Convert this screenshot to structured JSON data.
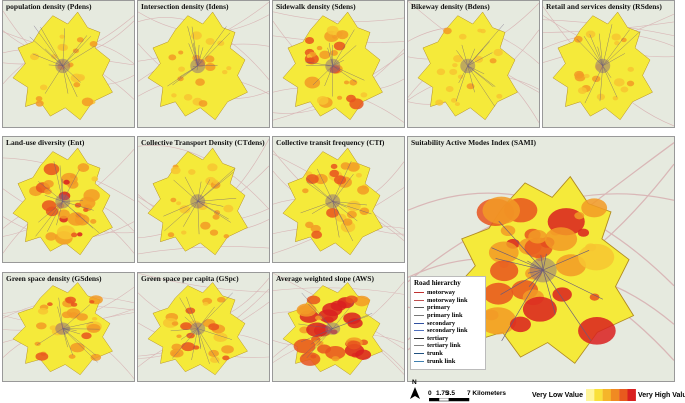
{
  "panels": [
    {
      "title": "population density (Pdens)"
    },
    {
      "title": "Intersection density (Idens)"
    },
    {
      "title": "Sidewalk density (Sdens)"
    },
    {
      "title": "Bikeway density (Bdens)"
    },
    {
      "title": "Retail and services density (RSdens)"
    },
    {
      "title": "Land-use diversity (Ent)"
    },
    {
      "title": "Collective Transport Density (CTdens)"
    },
    {
      "title": "Collective transit frequency (CTf)"
    },
    {
      "title": "Suitability Active Modes Index (SAMI)"
    },
    {
      "title": "Green space density (GSdens)"
    },
    {
      "title": "Green space per capita (GSpc)"
    },
    {
      "title": "Average weighted slope (AWS)"
    }
  ],
  "legend": {
    "title": "Road hierarchy",
    "items": [
      "motorway",
      "motorway link",
      "primary",
      "primary link",
      "secondary",
      "secondary link",
      "tertiary",
      "tertiary link",
      "trunk",
      "trunk link"
    ]
  },
  "north": "N",
  "scale": [
    "0",
    "1.75",
    "3.5",
    "7 Kilometers"
  ],
  "ramp": {
    "low": "Very Low Value",
    "high": "Very High Value"
  }
}
